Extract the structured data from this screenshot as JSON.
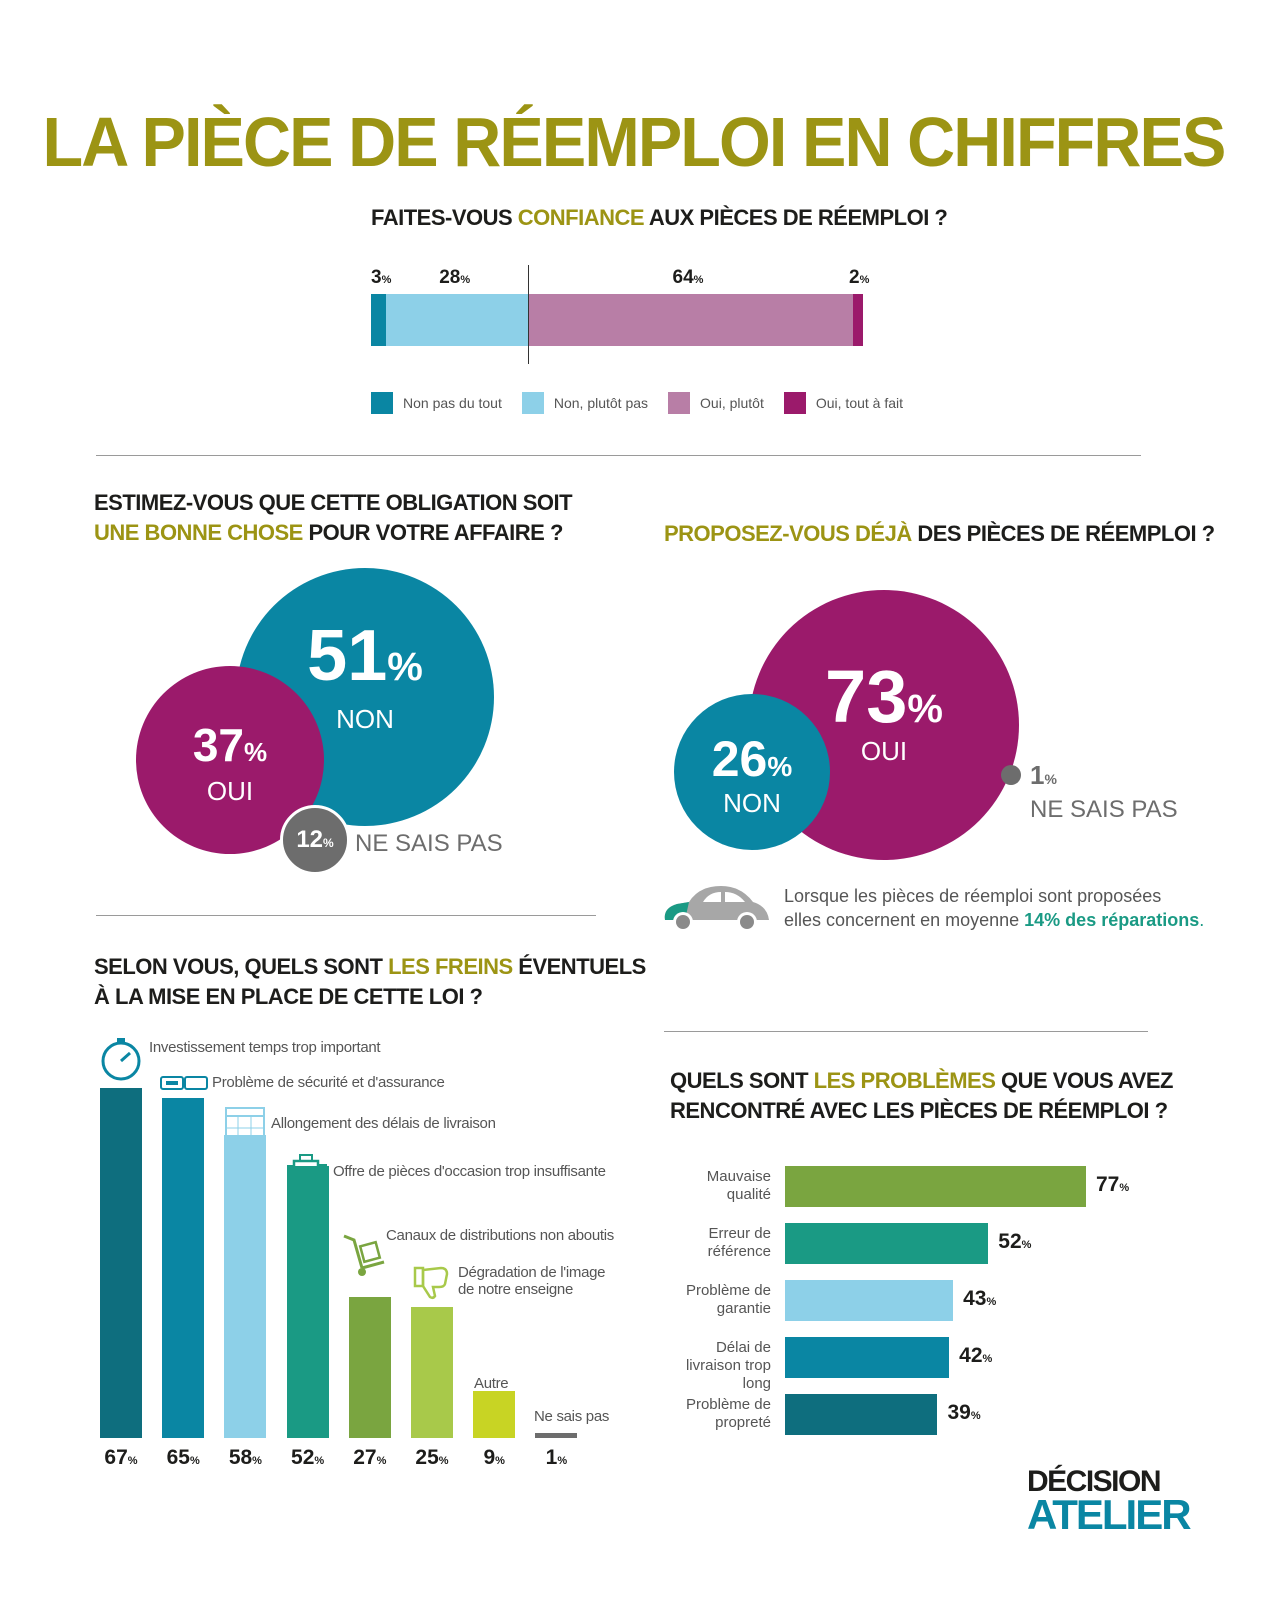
{
  "title": "LA PIÈCE DE RÉEMPLOI EN CHIFFRES",
  "q1": {
    "pre": "FAITES-VOUS ",
    "hl": "CONFIANCE",
    "post": " AUX PIÈCES DE RÉEMPLOI ?"
  },
  "q2": {
    "line1": "ESTIMEZ-VOUS QUE CETTE OBLIGATION SOIT",
    "hl": "UNE BONNE CHOSE",
    "post": " POUR VOTRE AFFAIRE ?"
  },
  "q3": {
    "hl": "PROPOSEZ-VOUS DÉJÀ",
    "post": " DES PIÈCES DE RÉEMPLOI ?"
  },
  "q4": {
    "pre": "SELON VOUS, QUELS SONT ",
    "hl": "LES FREINS",
    "post": " ÉVENTUELS",
    "line2": "À LA MISE EN PLACE DE CETTE LOI ?"
  },
  "q5": {
    "pre": "QUELS SONT ",
    "hl": "LES PROBLÈMES",
    "post": " QUE VOUS AVEZ",
    "line2": "RENCONTRÉ AVEC LES PIÈCES DE RÉEMPLOI ?"
  },
  "pct_sign": "%",
  "note": {
    "line1": "Lorsque les pièces de réemploi sont proposées",
    "line2_pre": "elles concernent en moyenne ",
    "hl": "14% des réparations",
    "line2_post": "."
  },
  "logo": {
    "line1": "DÉCISION",
    "line2": "ATELIER"
  },
  "colors": {
    "olive": "#9c9414",
    "teal_dark": "#0e6e7e",
    "teal": "#0a86a3",
    "light_blue": "#8dd0e8",
    "green_teal": "#1a9a84",
    "green": "#7aa540",
    "lime": "#a8c94a",
    "yellow": "#c8d424",
    "mauve": "#b87ea6",
    "purple": "#9b1a6b",
    "gray": "#6d6d6d"
  },
  "chart_data": [
    {
      "type": "bar",
      "orientation": "stacked-horizontal",
      "title": "FAITES-VOUS CONFIANCE AUX PIÈCES DE RÉEMPLOI ?",
      "series": [
        {
          "name": "Non pas du tout",
          "values": [
            3
          ],
          "label": "3",
          "color": "#0a86a3"
        },
        {
          "name": "Non, plutôt pas",
          "values": [
            28
          ],
          "label": "28",
          "color": "#8dd0e8"
        },
        {
          "name": "Oui, plutôt",
          "values": [
            64
          ],
          "label": "64",
          "color": "#b87ea6"
        },
        {
          "name": "Oui, tout à fait",
          "values": [
            2
          ],
          "label": "2",
          "color": "#9b1a6b"
        }
      ]
    },
    {
      "type": "pie",
      "style": "bubbles",
      "title": "ESTIMEZ-VOUS QUE CETTE OBLIGATION SOIT UNE BONNE CHOSE POUR VOTRE AFFAIRE ?",
      "slices": [
        {
          "label": "NON",
          "value": 51,
          "color": "#0a86a3"
        },
        {
          "label": "OUI",
          "value": 37,
          "color": "#9b1a6b"
        },
        {
          "label": "NE SAIS PAS",
          "value": 12,
          "color": "#6d6d6d"
        }
      ]
    },
    {
      "type": "pie",
      "style": "bubbles",
      "title": "PROPOSEZ-VOUS DÉJÀ DES PIÈCES DE RÉEMPLOI ?",
      "slices": [
        {
          "label": "OUI",
          "value": 73,
          "color": "#9b1a6b"
        },
        {
          "label": "NON",
          "value": 26,
          "color": "#0a86a3"
        },
        {
          "label": "NE SAIS PAS",
          "value": 1,
          "color": "#6d6d6d"
        }
      ]
    },
    {
      "type": "bar",
      "orientation": "vertical",
      "title": "SELON VOUS, QUELS SONT LES FREINS ÉVENTUELS À LA MISE EN PLACE DE CETTE LOI ?",
      "ylim": [
        0,
        67
      ],
      "bars": [
        {
          "label": "Investissement temps trop important",
          "value": 67,
          "color": "#0e6e7e",
          "icon": "stopwatch-icon"
        },
        {
          "label": "Problème de sécurité et d'assurance",
          "value": 65,
          "color": "#0a86a3",
          "icon": "seatbelt-icon"
        },
        {
          "label": "Allongement des délais de livraison",
          "value": 58,
          "color": "#8dd0e8",
          "icon": "calendar-icon"
        },
        {
          "label": "Offre de pièces d'occasion trop insuffisante",
          "value": 52,
          "color": "#1a9a84",
          "icon": "engine-icon"
        },
        {
          "label": "Canaux de distributions non aboutis",
          "value": 27,
          "color": "#7aa540",
          "icon": "hand-truck-icon"
        },
        {
          "label": "Dégradation de l'image de notre enseigne",
          "value": 25,
          "color": "#a8c94a",
          "icon": "thumbs-down-icon"
        },
        {
          "label": "Autre",
          "value": 9,
          "color": "#c8d424",
          "icon": ""
        },
        {
          "label": "Ne sais pas",
          "value": 1,
          "color": "#6d6d6d",
          "icon": ""
        }
      ]
    },
    {
      "type": "bar",
      "orientation": "horizontal",
      "title": "QUELS SONT LES PROBLÈMES QUE VOUS AVEZ RENCONTRÉ AVEC LES PIÈCES DE RÉEMPLOI ?",
      "xlim": [
        0,
        77
      ],
      "bars": [
        {
          "label": "Mauvaise qualité",
          "value": 77,
          "color": "#7aa540"
        },
        {
          "label": "Erreur de référence",
          "value": 52,
          "color": "#1a9a84"
        },
        {
          "label": "Problème de garantie",
          "value": 43,
          "color": "#8dd0e8"
        },
        {
          "label": "Délai de livraison trop long",
          "value": 42,
          "color": "#0a86a3"
        },
        {
          "label": "Problème de propreté",
          "value": 39,
          "color": "#0e6e7e"
        }
      ]
    }
  ]
}
